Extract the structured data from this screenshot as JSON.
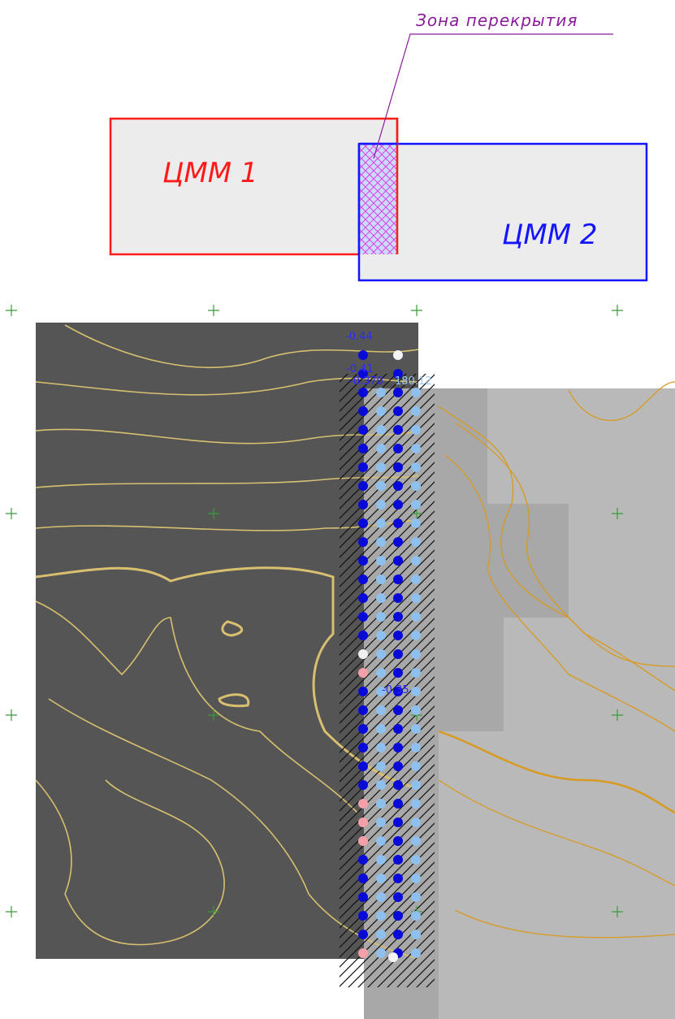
{
  "header": {
    "overlap_label": "Зона перекрытия"
  },
  "zones": [
    {
      "label": "ЦММ 1"
    },
    {
      "label": "ЦММ 2"
    }
  ],
  "map": {
    "labels": [
      "-0.44",
      "-0.41",
      "-0.370",
      "180.12",
      "-0.35"
    ]
  }
}
